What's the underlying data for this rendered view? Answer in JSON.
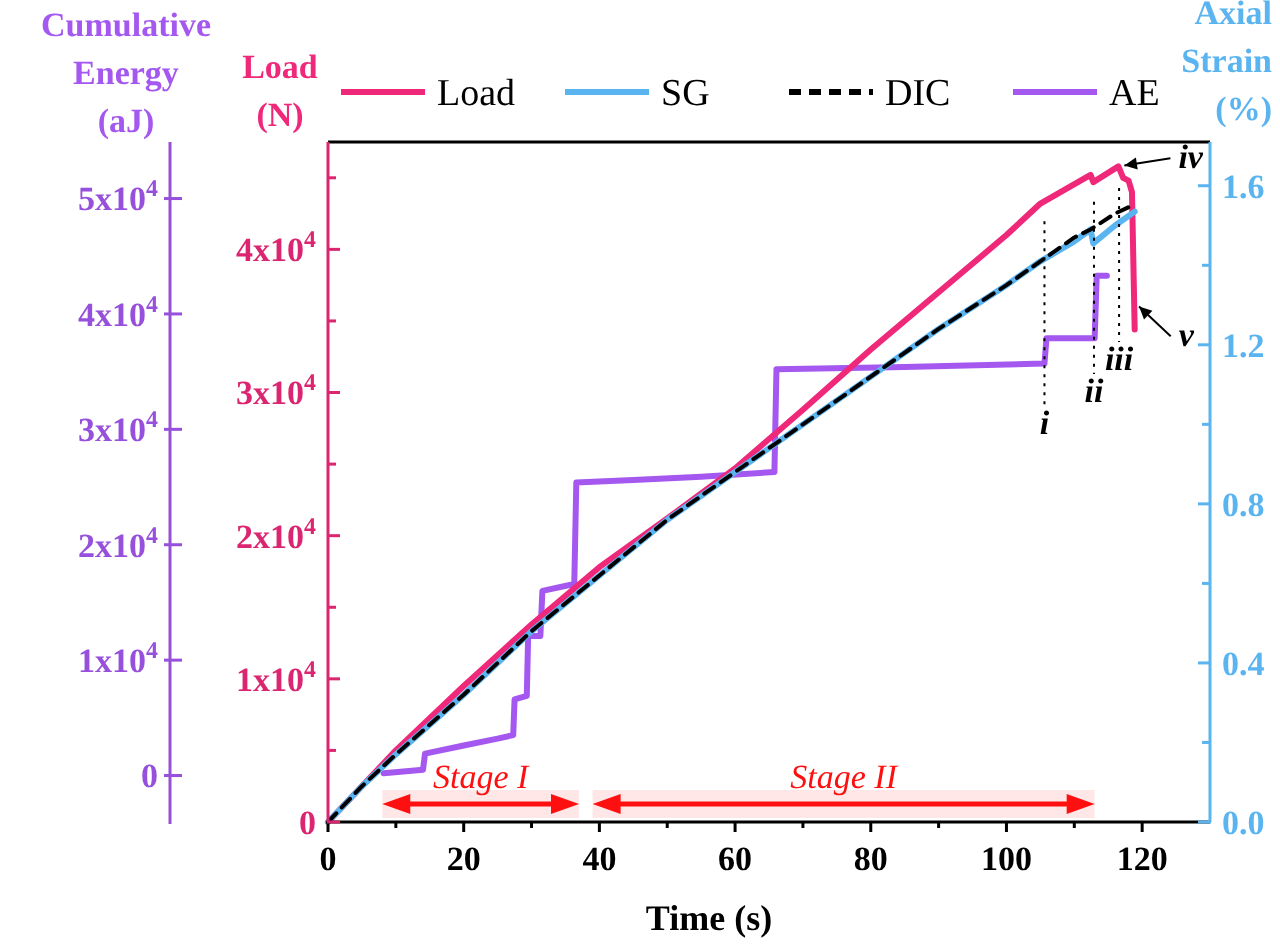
{
  "chart_data": {
    "type": "line",
    "xlabel": "Time (s)",
    "ylabel": "Load (N)",
    "y2label": "Axial Strain (%)",
    "y3label": "Cumulative Energy (aJ)",
    "xlim": [
      0,
      130
    ],
    "xticks": [
      0,
      {
        "value": 10,
        "label": null
      },
      20,
      {
        "value": 30,
        "label": null
      },
      40,
      {
        "value": 50,
        "label": null
      },
      60,
      {
        "value": 70,
        "label": null
      },
      80,
      {
        "value": 90,
        "label": null
      },
      100,
      {
        "value": 110,
        "label": null
      },
      120
    ],
    "ylim": [
      0,
      47500
    ],
    "yticks": [
      0,
      {
        "value": 5000,
        "label": null
      },
      {
        "value": 10000,
        "label": "1x10$^{4}$"
      },
      {
        "value": 15000,
        "label": null
      },
      {
        "value": 20000,
        "label": "2x10$^{4}$"
      },
      {
        "value": 25000,
        "label": null
      },
      {
        "value": 30000,
        "label": "3x10$^{4}$"
      },
      {
        "value": 35000,
        "label": null
      },
      {
        "value": 40000,
        "label": "4x10$^{4}$"
      },
      {
        "value": 45000,
        "label": null
      }
    ],
    "y2lim": [
      0,
      1.71
    ],
    "y2ticks": [
      {
        "value": 0,
        "label": "0.0"
      },
      {
        "value": 0.2,
        "label": null
      },
      {
        "value": 0.4,
        "label": "0.4"
      },
      {
        "value": 0.6,
        "label": null
      },
      {
        "value": 0.8,
        "label": "0.8"
      },
      {
        "value": 1.0,
        "label": null
      },
      {
        "value": 1.2,
        "label": "1.2"
      },
      {
        "value": 1.4,
        "label": null
      },
      {
        "value": 1.6,
        "label": "1.6"
      }
    ],
    "y3lim": [
      -4200,
      54900
    ],
    "y3ticks": [
      0,
      {
        "value": 10000,
        "label": "1x10$^{4}$"
      },
      {
        "value": 20000,
        "label": "2x10$^{4}$"
      },
      {
        "value": 30000,
        "label": "3x10$^{4}$"
      },
      {
        "value": 40000,
        "label": "4x10$^{4}$"
      },
      {
        "value": 50000,
        "label": "5x10$^{4}$"
      }
    ],
    "grid": false,
    "legend": "top",
    "marker": "none",
    "series": [
      {
        "name": "Load",
        "color": "#f0287a",
        "axis": "y",
        "x": [
          0,
          10,
          20,
          30,
          40,
          50,
          60,
          70,
          80,
          90,
          100,
          105,
          112.4,
          112.8,
          116.5,
          117.2,
          118,
          118.5,
          118.9
        ],
        "values": [
          0,
          5000,
          9500,
          13800,
          17800,
          21200,
          24700,
          28800,
          33000,
          37000,
          41000,
          43200,
          45200,
          44700,
          45800,
          45000,
          44800,
          44000,
          34400
        ]
      },
      {
        "name": "SG",
        "color": "#5ab4f0",
        "axis": "y2",
        "x": [
          0,
          5,
          10,
          20,
          30,
          40,
          50,
          60,
          70,
          80,
          90,
          100,
          105,
          110,
          112.4,
          112.8,
          116,
          118.9
        ],
        "values": [
          0,
          0.09,
          0.17,
          0.32,
          0.48,
          0.62,
          0.76,
          0.88,
          1.0,
          1.12,
          1.24,
          1.35,
          1.41,
          1.46,
          1.49,
          1.455,
          1.5,
          1.535
        ]
      },
      {
        "name": "DIC",
        "color": "#000000",
        "axis": "y2",
        "line_style": "dashed",
        "x": [
          0,
          5,
          10,
          20,
          30,
          40,
          50,
          60,
          70,
          80,
          90,
          100,
          105,
          110,
          112.4,
          116,
          118.5
        ],
        "values": [
          0,
          0.09,
          0.17,
          0.32,
          0.48,
          0.62,
          0.76,
          0.88,
          1.0,
          1.12,
          1.24,
          1.35,
          1.41,
          1.47,
          1.49,
          1.53,
          1.55
        ]
      },
      {
        "name": "AE",
        "color": "#a458f0",
        "axis": "y3",
        "x": [
          8.2,
          14,
          14.3,
          20,
          25,
          27.3,
          27.5,
          29.3,
          29.5,
          31.3,
          31.6,
          36.3,
          36.6,
          45,
          55,
          65.8,
          66.1,
          85,
          105.6,
          105.9,
          113,
          113.3,
          114.8
        ],
        "values": [
          200,
          500,
          1900,
          2600,
          3200,
          3500,
          6600,
          6900,
          12100,
          12100,
          16000,
          16600,
          25400,
          25600,
          25900,
          26300,
          35200,
          35400,
          35700,
          37900,
          37900,
          43300,
          43300
        ]
      }
    ],
    "ref_lines": [
      {
        "axis": "x",
        "value": 105.6,
        "label": "i",
        "color": "#000000",
        "line_style": "dotted"
      },
      {
        "axis": "x",
        "value": 112.9,
        "label": "ii",
        "color": "#000000",
        "line_style": "dotted"
      },
      {
        "axis": "x",
        "value": 116.6,
        "label": "iii",
        "color": "#000000",
        "line_style": "dotted"
      }
    ],
    "bands": [
      {
        "axis": "x",
        "from": 8,
        "to": 37,
        "label": "Stage I",
        "color": "#ff1010"
      },
      {
        "axis": "x",
        "from": 39,
        "to": 113,
        "label": "Stage II",
        "color": "#ff1010"
      }
    ],
    "annotations": [
      {
        "text": "iv",
        "x": 116.5,
        "y": 45800
      },
      {
        "text": "v",
        "x": 118.9,
        "y": 36300
      }
    ]
  }
}
